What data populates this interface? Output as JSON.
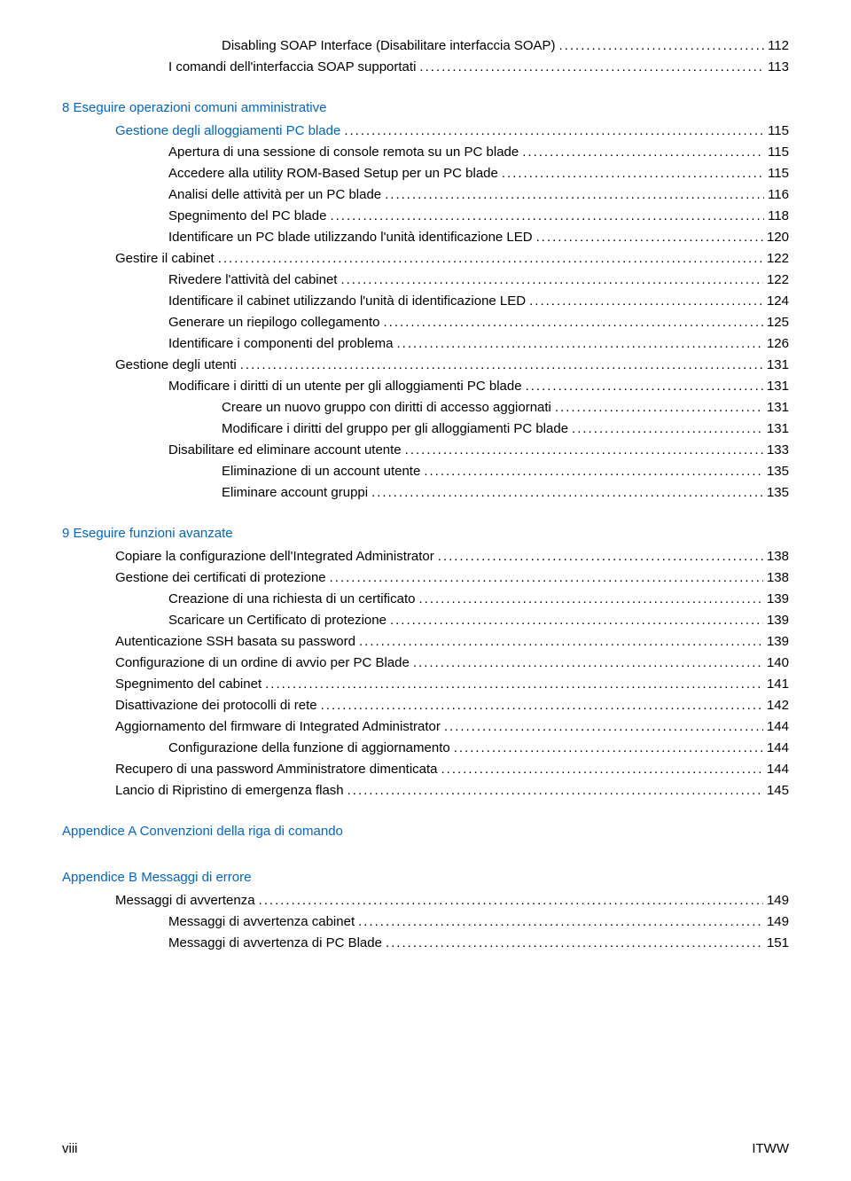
{
  "toc": [
    {
      "indent": 3,
      "title": "Disabling SOAP Interface (Disabilitare interfaccia SOAP)",
      "page": "112",
      "link": false
    },
    {
      "indent": 2,
      "title": "I comandi dell'interfaccia SOAP supportati",
      "page": "113",
      "link": false
    },
    {
      "section": "8  Eseguire operazioni comuni amministrative",
      "indent": 0
    },
    {
      "indent": 1,
      "title": "Gestione degli alloggiamenti PC blade",
      "page": "115",
      "link": true
    },
    {
      "indent": 2,
      "title": "Apertura di una sessione di console remota su un PC blade",
      "page": "115",
      "link": false
    },
    {
      "indent": 2,
      "title": "Accedere alla utility ROM-Based Setup per un PC blade",
      "page": "115",
      "link": false
    },
    {
      "indent": 2,
      "title": "Analisi delle attività per un PC blade",
      "page": "116",
      "link": false
    },
    {
      "indent": 2,
      "title": "Spegnimento del PC blade",
      "page": "118",
      "link": false
    },
    {
      "indent": 2,
      "title": "Identificare un PC blade utilizzando l'unità identificazione LED",
      "page": "120",
      "link": false
    },
    {
      "indent": 1,
      "title": "Gestire il cabinet",
      "page": "122",
      "link": false
    },
    {
      "indent": 2,
      "title": "Rivedere l'attività del cabinet",
      "page": "122",
      "link": false
    },
    {
      "indent": 2,
      "title": "Identificare il cabinet utilizzando l'unità di identificazione LED",
      "page": "124",
      "link": false
    },
    {
      "indent": 2,
      "title": "Generare un riepilogo collegamento",
      "page": "125",
      "link": false
    },
    {
      "indent": 2,
      "title": "Identificare i componenti del problema",
      "page": "126",
      "link": false
    },
    {
      "indent": 1,
      "title": "Gestione degli utenti",
      "page": "131",
      "link": false
    },
    {
      "indent": 2,
      "title": "Modificare i diritti di un utente per gli alloggiamenti PC blade",
      "page": "131",
      "link": false
    },
    {
      "indent": 3,
      "title": "Creare un nuovo gruppo con diritti di accesso aggiornati",
      "page": "131",
      "link": false
    },
    {
      "indent": 3,
      "title": "Modificare i diritti del gruppo per gli alloggiamenti PC blade",
      "page": "131",
      "link": false
    },
    {
      "indent": 2,
      "title": "Disabilitare ed eliminare account utente",
      "page": "133",
      "link": false
    },
    {
      "indent": 3,
      "title": "Eliminazione di un account utente",
      "page": "135",
      "link": false
    },
    {
      "indent": 3,
      "title": "Eliminare account gruppi",
      "page": "135",
      "link": false
    },
    {
      "section": "9  Eseguire funzioni avanzate",
      "indent": 0
    },
    {
      "indent": 1,
      "title": "Copiare la configurazione dell'Integrated Administrator",
      "page": "138",
      "link": false
    },
    {
      "indent": 1,
      "title": "Gestione dei certificati di protezione",
      "page": "138",
      "link": false
    },
    {
      "indent": 2,
      "title": "Creazione di una richiesta di un certificato",
      "page": "139",
      "link": false
    },
    {
      "indent": 2,
      "title": "Scaricare un Certificato di protezione",
      "page": "139",
      "link": false
    },
    {
      "indent": 1,
      "title": "Autenticazione SSH basata su password",
      "page": "139",
      "link": false
    },
    {
      "indent": 1,
      "title": "Configurazione di un ordine di avvio per PC Blade ",
      "page": "140",
      "link": false
    },
    {
      "indent": 1,
      "title": "Spegnimento del cabinet",
      "page": "141",
      "link": false
    },
    {
      "indent": 1,
      "title": "Disattivazione dei protocolli di rete",
      "page": "142",
      "link": false
    },
    {
      "indent": 1,
      "title": "Aggiornamento del firmware di Integrated Administrator",
      "page": "144",
      "link": false
    },
    {
      "indent": 2,
      "title": "Configurazione della funzione di aggiornamento",
      "page": "144",
      "link": false
    },
    {
      "indent": 1,
      "title": "Recupero di una password Amministratore dimenticata",
      "page": "144",
      "link": false
    },
    {
      "indent": 1,
      "title": "Lancio di Ripristino di emergenza flash",
      "page": "145",
      "link": false
    },
    {
      "section": "Appendice A  Convenzioni della riga di comando",
      "indent": 0,
      "extraSpace": true
    },
    {
      "section": "Appendice B  Messaggi di errore",
      "indent": 0
    },
    {
      "indent": 1,
      "title": "Messaggi di avvertenza",
      "page": "149",
      "link": false
    },
    {
      "indent": 2,
      "title": "Messaggi di avvertenza cabinet",
      "page": "149",
      "link": false
    },
    {
      "indent": 2,
      "title": "Messaggi di avvertenza di PC Blade",
      "page": "151",
      "link": false
    }
  ],
  "footer": {
    "left": "viii",
    "right": "ITWW"
  }
}
